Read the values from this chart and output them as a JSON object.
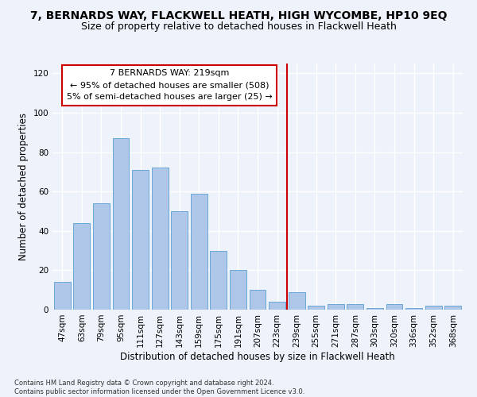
{
  "title": "7, BERNARDS WAY, FLACKWELL HEATH, HIGH WYCOMBE, HP10 9EQ",
  "subtitle": "Size of property relative to detached houses in Flackwell Heath",
  "xlabel": "Distribution of detached houses by size in Flackwell Heath",
  "ylabel": "Number of detached properties",
  "categories": [
    "47sqm",
    "63sqm",
    "79sqm",
    "95sqm",
    "111sqm",
    "127sqm",
    "143sqm",
    "159sqm",
    "175sqm",
    "191sqm",
    "207sqm",
    "223sqm",
    "239sqm",
    "255sqm",
    "271sqm",
    "287sqm",
    "303sqm",
    "320sqm",
    "336sqm",
    "352sqm",
    "368sqm"
  ],
  "values": [
    14,
    44,
    54,
    87,
    71,
    72,
    50,
    59,
    30,
    20,
    10,
    4,
    9,
    2,
    3,
    3,
    1,
    3,
    1,
    2,
    2
  ],
  "bar_color": "#aec6e8",
  "bar_edge_color": "#5a9fd4",
  "vline_x_index": 11.5,
  "annotation_text": "7 BERNARDS WAY: 219sqm\n← 95% of detached houses are smaller (508)\n5% of semi-detached houses are larger (25) →",
  "annotation_box_color": "#ffffff",
  "annotation_box_edge_color": "#cc0000",
  "vline_color": "#cc0000",
  "ylim": [
    0,
    125
  ],
  "yticks": [
    0,
    20,
    40,
    60,
    80,
    100,
    120
  ],
  "footer": "Contains HM Land Registry data © Crown copyright and database right 2024.\nContains public sector information licensed under the Open Government Licence v3.0.",
  "background_color": "#eef2fa",
  "grid_color": "#ffffff",
  "title_fontsize": 10,
  "subtitle_fontsize": 9,
  "axis_label_fontsize": 8.5,
  "tick_fontsize": 7.5,
  "annotation_fontsize": 8,
  "footer_fontsize": 6
}
